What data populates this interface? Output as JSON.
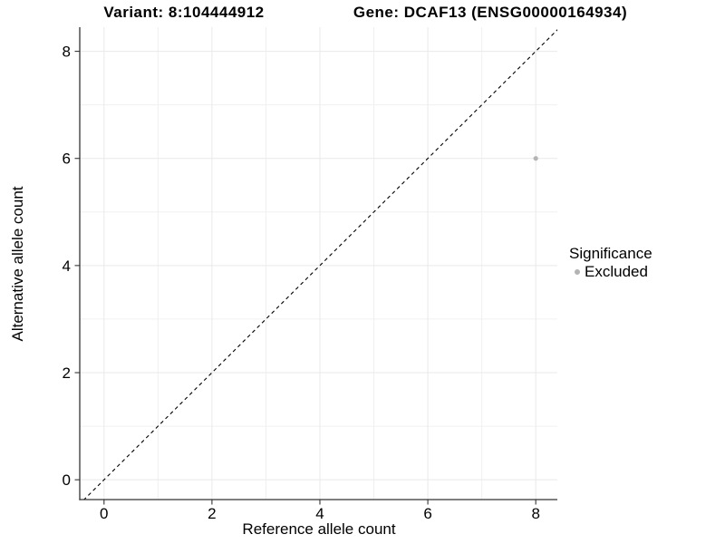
{
  "chart_data": {
    "type": "scatter",
    "titles": {
      "left": "Variant: 8:104444912",
      "right": "Gene: DCAF13 (ENSG00000164934)"
    },
    "xlabel": "Reference allele count",
    "ylabel": "Alternative allele count",
    "xlim": [
      -0.45,
      8.4
    ],
    "ylim": [
      -0.37,
      8.45
    ],
    "x_ticks": [
      0,
      2,
      4,
      6,
      8
    ],
    "y_ticks": [
      0,
      2,
      4,
      6,
      8
    ],
    "x_minor_ticks": [
      1,
      3,
      5,
      7
    ],
    "y_minor_ticks": [
      1,
      3,
      5,
      7
    ],
    "grid": "on",
    "identity_line": {
      "style": "dashed",
      "color": "#000000"
    },
    "series": [
      {
        "name": "Excluded",
        "color": "#b4b4b4",
        "points": [
          {
            "x": 8,
            "y": 6
          }
        ]
      }
    ],
    "legend": {
      "title": "Significance",
      "position": "right",
      "entries": [
        {
          "label": "Excluded",
          "color": "#b4b4b4"
        }
      ]
    },
    "colors": {
      "axis_line": "#333333",
      "tick_label": "#000000",
      "grid_major": "#e9e9e9",
      "grid_minor": "#f0f0f0"
    }
  }
}
